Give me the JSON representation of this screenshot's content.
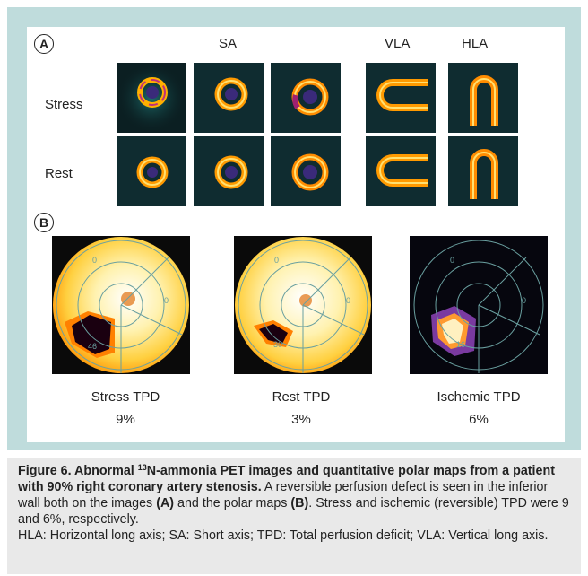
{
  "figure": {
    "panel_a_letter": "A",
    "panel_b_letter": "B",
    "views": {
      "sa": "SA",
      "vla": "VLA",
      "hla": "HLA"
    },
    "rows": {
      "stress": "Stress",
      "rest": "Rest"
    },
    "polar_maps": [
      {
        "label": "Stress TPD",
        "value": "9%",
        "sector_values": [
          "0",
          "0",
          "46"
        ]
      },
      {
        "label": "Rest TPD",
        "value": "3%",
        "sector_values": [
          "0",
          "0",
          "30"
        ]
      },
      {
        "label": "Ischemic TPD",
        "value": "6%",
        "sector_values": [
          "0",
          "0",
          "16"
        ]
      }
    ]
  },
  "caption": {
    "title_a": "Figure 6. Abnormal ",
    "title_sup": "13",
    "title_b": "N-ammonia PET images and quantitative polar maps from a patient with 90% right coronary artery stenosis.",
    "text_1": " A reversible perfusion defect is seen in the inferior wall both on the images ",
    "ref_a": "(A)",
    "text_2": " and the polar maps ",
    "ref_b": "(B)",
    "text_3": ". Stress and ischemic (reversible) TPD were 9 and 6%, respectively.",
    "abbrev": "HLA: Horizontal long axis; SA: Short axis; TPD: Total perfusion deficit; VLA: Vertical long axis."
  }
}
